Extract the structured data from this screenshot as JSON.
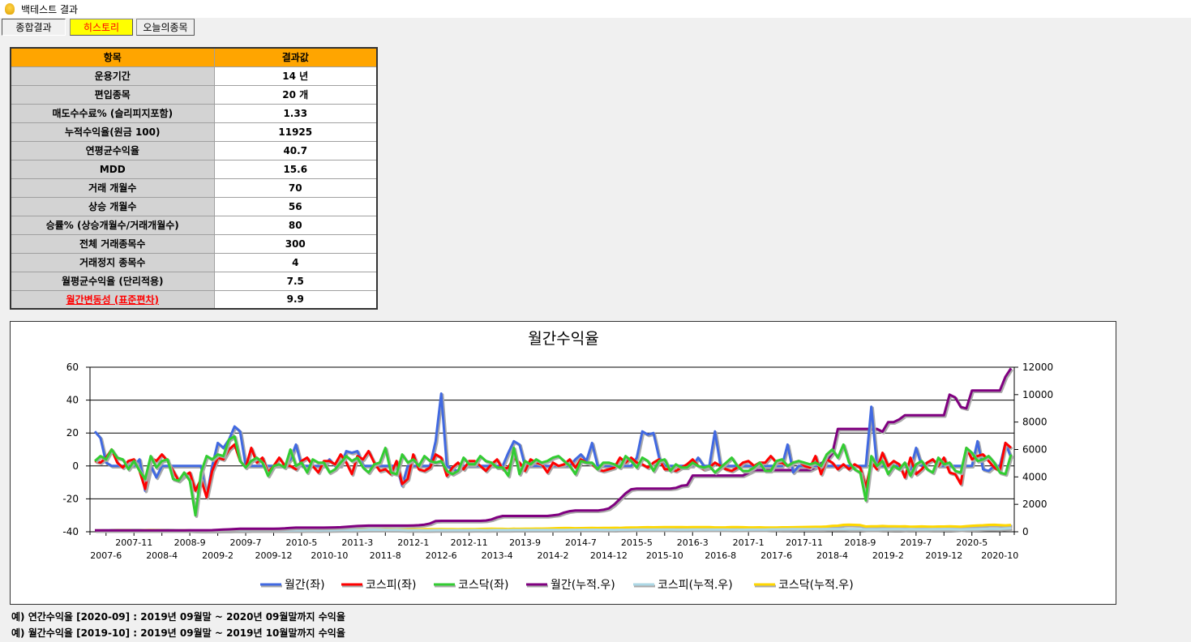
{
  "window": {
    "title": "백테스트 결과"
  },
  "tabs": [
    {
      "label": "종합결과"
    },
    {
      "label": "히스토리"
    },
    {
      "label": "오늘의종목"
    }
  ],
  "results": {
    "headers": [
      "항목",
      "결과값"
    ],
    "rows": [
      {
        "key": "운용기간",
        "value": "14 년"
      },
      {
        "key": "편입종목",
        "value": "20 개"
      },
      {
        "key": "매도수수료% (슬리피지포함)",
        "value": "1.33"
      },
      {
        "key": "누적수익율(원금 100)",
        "value": "11925"
      },
      {
        "key": "연평균수익율",
        "value": "40.7"
      },
      {
        "key": "MDD",
        "value": "15.6"
      },
      {
        "key": "거래 개월수",
        "value": "70"
      },
      {
        "key": "상승 개월수",
        "value": "56"
      },
      {
        "key": "승률% (상승개월수/거래개월수)",
        "value": "80"
      },
      {
        "key": "전체 거래종목수",
        "value": "300"
      },
      {
        "key": "거래정지 종목수",
        "value": "4"
      },
      {
        "key": "월평균수익율 (단리적용)",
        "value": "7.5"
      },
      {
        "key": "월간변동성 (표준편차)",
        "value": "9.9"
      }
    ]
  },
  "notes": [
    "예) 연간수익율 [2020-09] : 2019년 09월말 ~ 2020년 09월말까지 수익율",
    "예) 월간수익율 [2019-10] : 2019년 09월말 ~ 2019년 10월말까지 수익율"
  ],
  "chart_data": {
    "type": "line",
    "title": "월간수익율",
    "start_month": "2007-4",
    "ylim_left": [
      -40,
      60
    ],
    "yticks_left": [
      -40,
      -20,
      0,
      20,
      40,
      60
    ],
    "ylim_right": [
      0,
      12000
    ],
    "yticks_right": [
      0,
      2000,
      4000,
      6000,
      8000,
      10000,
      12000
    ],
    "xtick_labels": [
      "2007-6",
      "2007-11",
      "2008-4",
      "2008-9",
      "2009-2",
      "2009-7",
      "2009-12",
      "2010-5",
      "2010-10",
      "2011-3",
      "2011-8",
      "2012-1",
      "2012-6",
      "2012-11",
      "2013-4",
      "2013-9",
      "2014-2",
      "2014-7",
      "2014-12",
      "2015-5",
      "2015-10",
      "2016-3",
      "2016-8",
      "2017-1",
      "2017-6",
      "2017-11",
      "2018-4",
      "2018-9",
      "2019-2",
      "2019-7",
      "2019-12",
      "2020-5",
      "2020-10"
    ],
    "grid": true,
    "legend_position": "bottom",
    "cumulative_base": 100,
    "series": [
      {
        "name": "월간(좌)",
        "axis": "left",
        "color": "#4169e1",
        "values": [
          21,
          17,
          2,
          0,
          0,
          0,
          0,
          0,
          4,
          -15,
          0,
          -7,
          0,
          0,
          0,
          0,
          0,
          0,
          0,
          0,
          -19,
          0,
          14,
          11,
          16,
          24,
          21,
          0,
          0,
          0,
          0,
          0,
          0,
          0,
          0,
          4,
          13,
          0,
          0,
          0,
          0,
          0,
          4,
          0,
          0,
          9,
          8,
          9,
          0,
          0,
          0,
          0,
          0,
          0,
          0,
          -12,
          0,
          0,
          0,
          0,
          0,
          15,
          44,
          0,
          -2,
          -3,
          0,
          0,
          0,
          0,
          0,
          0,
          0,
          0,
          8,
          15,
          13,
          0,
          0,
          0,
          0,
          0,
          0,
          0,
          0,
          0,
          4,
          7,
          3,
          14,
          0,
          0,
          0,
          0,
          0,
          0,
          0,
          5,
          21,
          19,
          20,
          5,
          0,
          0,
          0,
          0,
          0,
          0,
          5,
          0,
          0,
          21,
          0,
          0,
          0,
          0,
          0,
          0,
          0,
          0,
          0,
          0,
          0,
          0,
          13,
          -4,
          0,
          0,
          0,
          0,
          0,
          0,
          0,
          0,
          0,
          0,
          0,
          0,
          0,
          36,
          0,
          0,
          0,
          0,
          0,
          0,
          -2,
          11,
          0,
          2,
          4,
          0,
          0,
          0,
          0,
          0,
          0,
          0,
          15,
          -2,
          -3,
          0,
          0,
          14,
          5
        ]
      },
      {
        "name": "코스피(좌)",
        "axis": "left",
        "color": "#ff0000",
        "values": [
          3,
          2,
          5,
          10,
          2,
          -1,
          3,
          4,
          -3,
          -14,
          5,
          3,
          7,
          3,
          -3,
          -9,
          -6,
          -4,
          -15,
          -8,
          -19,
          -3,
          5,
          4,
          10,
          13,
          3,
          -1,
          11,
          2,
          5,
          -4,
          0,
          5,
          0,
          0,
          -2,
          3,
          5,
          0,
          -4,
          3,
          3,
          1,
          7,
          2,
          -5,
          6,
          4,
          9,
          2,
          -3,
          -2,
          -5,
          3,
          -11,
          -8,
          7,
          -2,
          -3,
          -1,
          7,
          5,
          -6,
          -1,
          2,
          -2,
          3,
          3,
          0,
          -3,
          1,
          4,
          -2,
          -1,
          5,
          2,
          -3,
          4,
          2,
          1,
          -4,
          2,
          0,
          1,
          4,
          -1,
          4,
          2,
          1,
          -2,
          -3,
          -2,
          -1,
          5,
          2,
          5,
          2,
          1,
          -1,
          2,
          4,
          -2,
          -2,
          -3,
          -1,
          1,
          4,
          0,
          -2,
          -1,
          2,
          0,
          -2,
          -3,
          -1,
          2,
          3,
          0,
          2,
          2,
          6,
          2,
          2,
          0,
          2,
          3,
          0,
          -1,
          6,
          -5,
          4,
          2,
          -2,
          1,
          -2,
          1,
          -1,
          -13,
          2,
          -2,
          8,
          0,
          3,
          1,
          -7,
          5,
          -5,
          -2,
          2,
          4,
          0,
          5,
          -4,
          -5,
          -11,
          11,
          4,
          6,
          7,
          3,
          -1,
          -3,
          14,
          11
        ]
      },
      {
        "name": "코스닥(좌)",
        "axis": "left",
        "color": "#32cd32",
        "values": [
          3,
          6,
          4,
          10,
          5,
          4,
          -2,
          3,
          -3,
          -8,
          6,
          -1,
          3,
          4,
          -8,
          -9,
          -4,
          -9,
          -30,
          -4,
          6,
          4,
          7,
          6,
          16,
          18,
          3,
          -1,
          3,
          5,
          2,
          -6,
          0,
          1,
          -1,
          10,
          0,
          2,
          -4,
          4,
          2,
          2,
          -4,
          -2,
          2,
          6,
          3,
          5,
          -1,
          -4,
          1,
          2,
          11,
          -4,
          -5,
          7,
          2,
          4,
          0,
          6,
          3,
          2,
          3,
          -3,
          -5,
          -3,
          5,
          1,
          1,
          6,
          3,
          2,
          -1,
          -1,
          -6,
          11,
          -5,
          3,
          1,
          4,
          2,
          3,
          5,
          6,
          3,
          0,
          -5,
          3,
          2,
          2,
          -2,
          2,
          2,
          1,
          -1,
          6,
          3,
          -1,
          5,
          3,
          -3,
          3,
          4,
          -3,
          1,
          -1,
          -1,
          2,
          0,
          -1,
          0,
          -4,
          -1,
          2,
          5,
          0,
          -3,
          -3,
          -1,
          2,
          -3,
          -3,
          3,
          4,
          0,
          2,
          3,
          2,
          1,
          2,
          0,
          7,
          10,
          5,
          13,
          2,
          -2,
          -4,
          -21,
          6,
          0,
          3,
          -5,
          0,
          -2,
          2,
          -6,
          1,
          3,
          -2,
          -4,
          5,
          1,
          2,
          -3,
          -4,
          11,
          8,
          3,
          4,
          6,
          2,
          -4,
          -5,
          7
        ]
      },
      {
        "name": "월간(누적.우)",
        "axis": "right",
        "color": "#800080",
        "values": [
          100,
          100,
          100,
          100,
          100,
          100,
          100,
          100,
          100,
          100,
          100,
          100,
          100,
          100,
          105,
          105,
          105,
          110,
          110,
          110,
          110,
          120,
          140,
          160,
          180,
          200,
          220,
          220,
          220,
          220,
          220,
          220,
          220,
          230,
          250,
          280,
          300,
          300,
          300,
          300,
          300,
          300,
          310,
          320,
          330,
          360,
          390,
          420,
          440,
          450,
          450,
          450,
          450,
          450,
          450,
          450,
          450,
          460,
          480,
          520,
          600,
          780,
          800,
          800,
          800,
          800,
          800,
          800,
          800,
          800,
          820,
          900,
          1050,
          1150,
          1150,
          1150,
          1150,
          1150,
          1150,
          1150,
          1150,
          1150,
          1200,
          1250,
          1400,
          1500,
          1550,
          1550,
          1550,
          1550,
          1550,
          1600,
          1700,
          2000,
          2400,
          2800,
          3100,
          3150,
          3150,
          3150,
          3150,
          3150,
          3150,
          3150,
          3200,
          3350,
          3400,
          4100,
          4100,
          4100,
          4100,
          4100,
          4100,
          4100,
          4100,
          4100,
          4100,
          4300,
          4500,
          4500,
          4500,
          4500,
          4500,
          4500,
          4500,
          4500,
          4500,
          4500,
          4500,
          4700,
          5000,
          5200,
          5700,
          7500,
          7500,
          7500,
          7500,
          7500,
          7500,
          7500,
          7500,
          7300,
          8000,
          8000,
          8200,
          8500,
          8500,
          8500,
          8500,
          8500,
          8500,
          8500,
          8500,
          10000,
          9800,
          9100,
          9000,
          10300,
          10300,
          10300,
          10300,
          10300,
          10300,
          11300,
          11925
        ]
      },
      {
        "name": "코스피(누적.우)",
        "axis": "right",
        "color": "#add8e6",
        "derived_from": "코스피(좌)"
      },
      {
        "name": "코스닥(누적.우)",
        "axis": "right",
        "color": "#ffd700",
        "derived_from": "코스닥(좌)"
      }
    ]
  }
}
